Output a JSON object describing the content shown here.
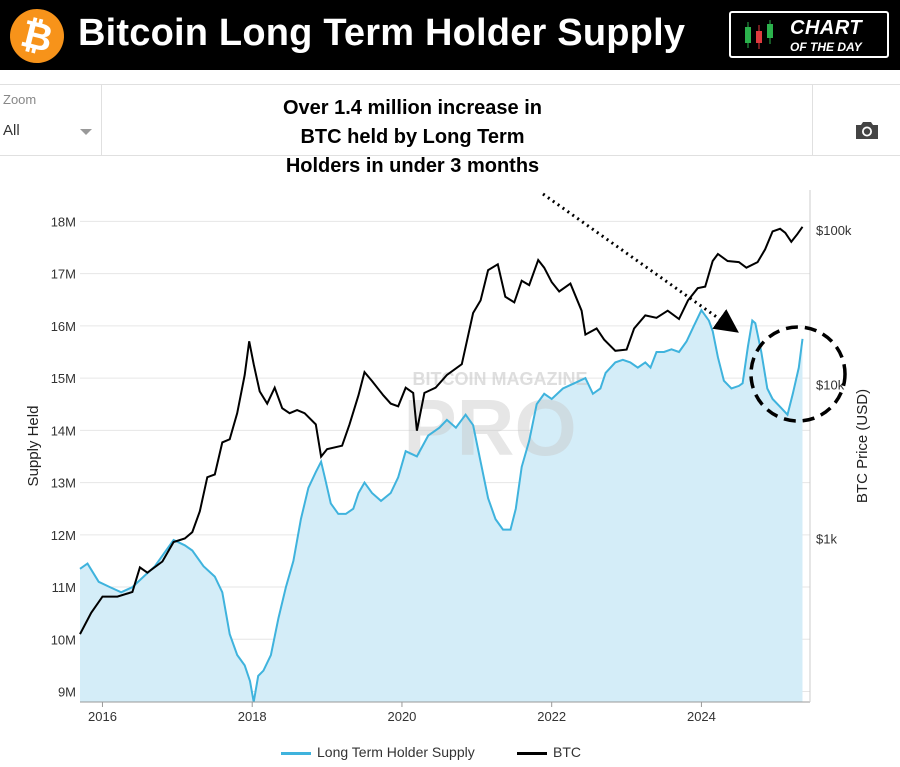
{
  "header": {
    "logo_symbol": "₿",
    "title": "Bitcoin Long Term Holder Supply",
    "badge": {
      "line1": "CHART",
      "line2": "OF THE DAY",
      "icon": "candlestick-icon"
    }
  },
  "toolbar": {
    "zoom_label": "Zoom",
    "zoom_value": "All",
    "camera_icon": "camera-icon"
  },
  "annotation": {
    "lines": [
      "Over 1.4 million increase in",
      "BTC held by Long Term",
      "Holders in under 3 months"
    ]
  },
  "watermark": {
    "top": "BITCOIN MAGAZINE",
    "main": "PRO"
  },
  "colors": {
    "lth": "#3fb3dd",
    "lth_fill": "#d4edf8",
    "btc": "#000000",
    "header_bg": "#000000",
    "logo": "#f7931a"
  },
  "chart_data": {
    "type": "line",
    "title": "Bitcoin Long Term Holder Supply",
    "ylabel": "Supply Held",
    "y2label": "BTC Price (USD)",
    "xlim": [
      2015.7,
      2025.45
    ],
    "ylim": [
      8.8,
      18.6
    ],
    "y2lim_log": [
      1.94,
      5.26
    ],
    "x_ticks": [
      2016,
      2018,
      2020,
      2022,
      2024
    ],
    "x_tick_labels": [
      "2016",
      "2018",
      "2020",
      "2022",
      "2024"
    ],
    "y_ticks": [
      9,
      10,
      11,
      12,
      13,
      14,
      15,
      16,
      17,
      18
    ],
    "y_tick_labels": [
      "9M",
      "10M",
      "11M",
      "12M",
      "13M",
      "14M",
      "15M",
      "16M",
      "17M",
      "18M"
    ],
    "y2_ticks": [
      1000,
      10000,
      100000
    ],
    "y2_tick_labels": [
      "$1k",
      "$10k",
      "$100k"
    ],
    "y2_scale": "log",
    "grid": true,
    "legend_position": "bottom",
    "series": [
      {
        "name": "Long Term Holder Supply",
        "axis": "left",
        "area": true,
        "points": [
          [
            2015.7,
            11.35
          ],
          [
            2015.8,
            11.45
          ],
          [
            2015.95,
            11.1
          ],
          [
            2016.1,
            11.0
          ],
          [
            2016.25,
            10.9
          ],
          [
            2016.4,
            11.0
          ],
          [
            2016.55,
            11.2
          ],
          [
            2016.7,
            11.4
          ],
          [
            2016.85,
            11.7
          ],
          [
            2016.95,
            11.9
          ],
          [
            2017.1,
            11.8
          ],
          [
            2017.2,
            11.7
          ],
          [
            2017.35,
            11.4
          ],
          [
            2017.5,
            11.2
          ],
          [
            2017.6,
            10.9
          ],
          [
            2017.7,
            10.1
          ],
          [
            2017.8,
            9.7
          ],
          [
            2017.9,
            9.5
          ],
          [
            2017.97,
            9.2
          ],
          [
            2018.02,
            8.8
          ],
          [
            2018.08,
            9.3
          ],
          [
            2018.15,
            9.4
          ],
          [
            2018.25,
            9.7
          ],
          [
            2018.35,
            10.4
          ],
          [
            2018.45,
            11.0
          ],
          [
            2018.55,
            11.5
          ],
          [
            2018.65,
            12.3
          ],
          [
            2018.75,
            12.9
          ],
          [
            2018.85,
            13.2
          ],
          [
            2018.92,
            13.4
          ],
          [
            2018.97,
            13.1
          ],
          [
            2019.05,
            12.6
          ],
          [
            2019.15,
            12.4
          ],
          [
            2019.25,
            12.4
          ],
          [
            2019.35,
            12.5
          ],
          [
            2019.42,
            12.8
          ],
          [
            2019.5,
            13.0
          ],
          [
            2019.6,
            12.8
          ],
          [
            2019.72,
            12.65
          ],
          [
            2019.85,
            12.8
          ],
          [
            2019.95,
            13.1
          ],
          [
            2020.05,
            13.6
          ],
          [
            2020.2,
            13.5
          ],
          [
            2020.35,
            13.9
          ],
          [
            2020.5,
            14.05
          ],
          [
            2020.6,
            14.2
          ],
          [
            2020.72,
            14.05
          ],
          [
            2020.85,
            14.3
          ],
          [
            2020.95,
            14.1
          ],
          [
            2021.05,
            13.4
          ],
          [
            2021.15,
            12.7
          ],
          [
            2021.25,
            12.3
          ],
          [
            2021.35,
            12.1
          ],
          [
            2021.45,
            12.1
          ],
          [
            2021.52,
            12.5
          ],
          [
            2021.6,
            13.3
          ],
          [
            2021.7,
            13.8
          ],
          [
            2021.8,
            14.5
          ],
          [
            2021.9,
            14.7
          ],
          [
            2022.0,
            14.6
          ],
          [
            2022.15,
            14.8
          ],
          [
            2022.3,
            14.9
          ],
          [
            2022.45,
            15.0
          ],
          [
            2022.55,
            14.7
          ],
          [
            2022.65,
            14.8
          ],
          [
            2022.72,
            15.1
          ],
          [
            2022.85,
            15.3
          ],
          [
            2022.95,
            15.35
          ],
          [
            2023.05,
            15.3
          ],
          [
            2023.15,
            15.2
          ],
          [
            2023.25,
            15.3
          ],
          [
            2023.32,
            15.2
          ],
          [
            2023.4,
            15.5
          ],
          [
            2023.5,
            15.5
          ],
          [
            2023.6,
            15.55
          ],
          [
            2023.7,
            15.5
          ],
          [
            2023.8,
            15.7
          ],
          [
            2023.9,
            16.0
          ],
          [
            2024.0,
            16.3
          ],
          [
            2024.1,
            16.1
          ],
          [
            2024.15,
            15.9
          ],
          [
            2024.22,
            15.4
          ],
          [
            2024.3,
            14.95
          ],
          [
            2024.4,
            14.8
          ],
          [
            2024.5,
            14.85
          ],
          [
            2024.55,
            14.9
          ],
          [
            2024.62,
            15.6
          ],
          [
            2024.68,
            16.1
          ],
          [
            2024.72,
            16.05
          ],
          [
            2024.8,
            15.5
          ],
          [
            2024.88,
            14.8
          ],
          [
            2024.95,
            14.6
          ],
          [
            2025.05,
            14.45
          ],
          [
            2025.15,
            14.3
          ],
          [
            2025.22,
            14.7
          ],
          [
            2025.3,
            15.2
          ],
          [
            2025.35,
            15.75
          ]
        ]
      },
      {
        "name": "BTC",
        "axis": "right",
        "points": [
          [
            2015.7,
            240
          ],
          [
            2015.85,
            330
          ],
          [
            2016.0,
            420
          ],
          [
            2016.2,
            420
          ],
          [
            2016.4,
            450
          ],
          [
            2016.5,
            650
          ],
          [
            2016.6,
            600
          ],
          [
            2016.8,
            710
          ],
          [
            2016.95,
            950
          ],
          [
            2017.1,
            1000
          ],
          [
            2017.2,
            1100
          ],
          [
            2017.3,
            1500
          ],
          [
            2017.4,
            2500
          ],
          [
            2017.5,
            2600
          ],
          [
            2017.6,
            4200
          ],
          [
            2017.7,
            4400
          ],
          [
            2017.8,
            6500
          ],
          [
            2017.9,
            11500
          ],
          [
            2017.96,
            19000
          ],
          [
            2018.02,
            13500
          ],
          [
            2018.1,
            9000
          ],
          [
            2018.2,
            7500
          ],
          [
            2018.3,
            9500
          ],
          [
            2018.4,
            7000
          ],
          [
            2018.5,
            6500
          ],
          [
            2018.6,
            6800
          ],
          [
            2018.7,
            6500
          ],
          [
            2018.85,
            5500
          ],
          [
            2018.92,
            3400
          ],
          [
            2019.0,
            3800
          ],
          [
            2019.2,
            4000
          ],
          [
            2019.3,
            5500
          ],
          [
            2019.42,
            8500
          ],
          [
            2019.5,
            12000
          ],
          [
            2019.6,
            10500
          ],
          [
            2019.75,
            8500
          ],
          [
            2019.85,
            7500
          ],
          [
            2019.95,
            7200
          ],
          [
            2020.05,
            9500
          ],
          [
            2020.15,
            8800
          ],
          [
            2020.2,
            5000
          ],
          [
            2020.3,
            8800
          ],
          [
            2020.45,
            9500
          ],
          [
            2020.6,
            11500
          ],
          [
            2020.8,
            13500
          ],
          [
            2020.95,
            29000
          ],
          [
            2021.05,
            35000
          ],
          [
            2021.15,
            55000
          ],
          [
            2021.28,
            60000
          ],
          [
            2021.38,
            37000
          ],
          [
            2021.5,
            34000
          ],
          [
            2021.6,
            47000
          ],
          [
            2021.7,
            44000
          ],
          [
            2021.82,
            64000
          ],
          [
            2021.9,
            57000
          ],
          [
            2022.0,
            46000
          ],
          [
            2022.1,
            40000
          ],
          [
            2022.25,
            45000
          ],
          [
            2022.4,
            30000
          ],
          [
            2022.45,
            21000
          ],
          [
            2022.6,
            23000
          ],
          [
            2022.7,
            19500
          ],
          [
            2022.85,
            16500
          ],
          [
            2023.0,
            16800
          ],
          [
            2023.1,
            23000
          ],
          [
            2023.25,
            28000
          ],
          [
            2023.4,
            27000
          ],
          [
            2023.55,
            30000
          ],
          [
            2023.7,
            26500
          ],
          [
            2023.82,
            35000
          ],
          [
            2023.95,
            42000
          ],
          [
            2024.05,
            43000
          ],
          [
            2024.15,
            63000
          ],
          [
            2024.22,
            70000
          ],
          [
            2024.35,
            63000
          ],
          [
            2024.5,
            62000
          ],
          [
            2024.6,
            57000
          ],
          [
            2024.75,
            62000
          ],
          [
            2024.85,
            75000
          ],
          [
            2024.95,
            98000
          ],
          [
            2025.05,
            102000
          ],
          [
            2025.12,
            96000
          ],
          [
            2025.2,
            84000
          ],
          [
            2025.28,
            94000
          ],
          [
            2025.35,
            105000
          ]
        ]
      }
    ]
  },
  "legend": {
    "items": [
      {
        "label": "Long Term Holder Supply"
      },
      {
        "label": "BTC"
      }
    ]
  }
}
